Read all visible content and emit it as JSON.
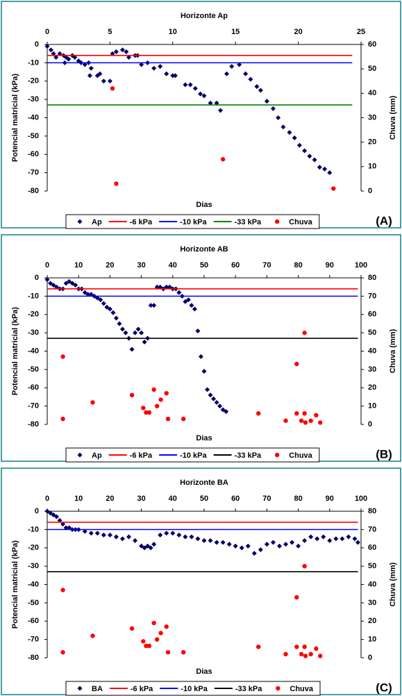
{
  "chart_data": [
    {
      "type": "scatter",
      "title": "Horizonte Ap",
      "panel_label": "(A)",
      "xlabel": "Dias",
      "ylabel": "Potencial matricial (kPa)",
      "y2label": "Chuva (mm)",
      "xlim": [
        0,
        25
      ],
      "xticks": [
        0,
        5,
        10,
        15,
        20,
        25
      ],
      "ylim": [
        -80,
        0
      ],
      "yticks": [
        -80,
        -70,
        -60,
        -50,
        -40,
        -30,
        -20,
        -10,
        0
      ],
      "y2lim": [
        0,
        60
      ],
      "y2ticks": [
        0,
        10,
        20,
        30,
        40,
        50,
        60
      ],
      "grid": false,
      "series": [
        {
          "name": "Ap",
          "color": "#000066",
          "marker": "diamond",
          "x": [
            0,
            0.3,
            0.5,
            0.7,
            1,
            1.3,
            1.4,
            1.5,
            1.7,
            2,
            2.2,
            2.5,
            2.7,
            3,
            3.3,
            3.5,
            3.4,
            4,
            4.2,
            4.5,
            5,
            5.2,
            5.5,
            6,
            6.3,
            6.5,
            7,
            7.2,
            7.5,
            8,
            8.5,
            9,
            9.5,
            10,
            10.2,
            11,
            11.4,
            11.8,
            12.2,
            12.5,
            13,
            13.5,
            13.8,
            14.3,
            14.7,
            15.3,
            15.8,
            16.2,
            16.7,
            17,
            17.5,
            18,
            18.4,
            18.8,
            19.3,
            19.7,
            20.1,
            20.5,
            20.9,
            21.3,
            21.7,
            22.1,
            22.5
          ],
          "values": [
            -1,
            -3,
            -5,
            -7,
            -5,
            -6,
            -10,
            -7,
            -8,
            -6,
            -7,
            -9,
            -10,
            -11,
            -10,
            -13,
            -17,
            -17,
            -16,
            -20,
            -20,
            -5,
            -4,
            -3,
            -4,
            -7,
            -6,
            -6,
            -11,
            -10,
            -13,
            -12,
            -16,
            -17,
            -17,
            -22,
            -22,
            -24,
            -27,
            -28,
            -32,
            -32,
            -36,
            -16,
            -12,
            -11,
            -16,
            -19,
            -23,
            -25,
            -31,
            -35,
            -40,
            -45,
            -48,
            -51,
            -55,
            -58,
            -61,
            -63,
            -67,
            -68,
            -70
          ]
        },
        {
          "name": "-6 kPa",
          "color": "#ff0000",
          "marker": "line",
          "x": [
            0,
            24.3
          ],
          "values": [
            -6,
            -6
          ]
        },
        {
          "name": "-10 kPa",
          "color": "#0000ff",
          "marker": "line",
          "x": [
            0,
            24.3
          ],
          "values": [
            -10,
            -10
          ]
        },
        {
          "name": "-33 kPa",
          "color": "#008000",
          "marker": "line",
          "x": [
            0,
            24.3
          ],
          "values": [
            -33,
            -33
          ]
        },
        {
          "name": "Chuva",
          "color": "#ff0000",
          "marker": "circle",
          "axis": "y2",
          "x": [
            5.2,
            5.5,
            14,
            22.8
          ],
          "values": [
            42,
            3,
            13,
            1
          ]
        }
      ]
    },
    {
      "type": "scatter",
      "title": "Horizonte AB",
      "panel_label": "(B)",
      "xlabel": "Dias",
      "ylabel": "Potencial matricial (kPa)",
      "y2label": "Chuva (mm)",
      "xlim": [
        0,
        100
      ],
      "xticks": [
        0,
        10,
        20,
        30,
        40,
        50,
        60,
        70,
        80,
        90,
        100
      ],
      "ylim": [
        -80,
        0
      ],
      "yticks": [
        -80,
        -70,
        -60,
        -50,
        -40,
        -30,
        -20,
        -10,
        0
      ],
      "y2lim": [
        0,
        80
      ],
      "y2ticks": [
        0,
        10,
        20,
        30,
        40,
        50,
        60,
        70,
        80
      ],
      "grid": false,
      "series": [
        {
          "name": "Ap",
          "color": "#000066",
          "marker": "diamond",
          "x": [
            0,
            1,
            2,
            3,
            4,
            5,
            6,
            7,
            8,
            9,
            10,
            11,
            12,
            13,
            14,
            15,
            16,
            17,
            18,
            19,
            20,
            21,
            22,
            23,
            24,
            25,
            26,
            27,
            28,
            29,
            30,
            31,
            32,
            33,
            34,
            35,
            36,
            37,
            38,
            39,
            40,
            41,
            42,
            43,
            44,
            45,
            46,
            47,
            48,
            49,
            50,
            51,
            52,
            53,
            54,
            55,
            56,
            57
          ],
          "values": [
            -1,
            -3,
            -4,
            -5,
            -6,
            -6,
            -3,
            -2,
            -3,
            -4,
            -6,
            -6,
            -8,
            -9,
            -9,
            -10,
            -11,
            -12,
            -14,
            -16,
            -17,
            -19,
            -22,
            -25,
            -28,
            -30,
            -33,
            -39,
            -30,
            -28,
            -30,
            -35,
            -33,
            -15,
            -15,
            -5,
            -5,
            -6,
            -5,
            -5,
            -6,
            -6,
            -8,
            -10,
            -13,
            -12,
            -15,
            -17,
            -29,
            -43,
            -51,
            -61,
            -64,
            -66,
            -68,
            -70,
            -72,
            -73
          ]
        },
        {
          "name": "-6 kPa",
          "color": "#ff0000",
          "marker": "line",
          "x": [
            0,
            99
          ],
          "values": [
            -6,
            -6
          ]
        },
        {
          "name": "-10 kPa",
          "color": "#0000ff",
          "marker": "line",
          "x": [
            0,
            99
          ],
          "values": [
            -10,
            -10
          ]
        },
        {
          "name": "-33 kPa",
          "color": "#000000",
          "marker": "line",
          "x": [
            0,
            99
          ],
          "values": [
            -33,
            -33
          ]
        },
        {
          "name": "Chuva",
          "color": "#ff0000",
          "marker": "circle",
          "axis": "y2",
          "x": [
            5,
            5,
            14.5,
            27,
            30.6,
            31.5,
            32.5,
            34,
            35,
            36.2,
            38,
            38.5,
            43.4,
            67.3,
            76,
            79.5,
            79.5,
            81,
            82,
            82.3,
            82,
            84,
            85.7,
            87
          ],
          "values": [
            37,
            3,
            12,
            16,
            9,
            6.5,
            6.5,
            19,
            10,
            13.5,
            17,
            3,
            3,
            6,
            2,
            33,
            6,
            2,
            6,
            1,
            50,
            2,
            5,
            1
          ]
        }
      ]
    },
    {
      "type": "scatter",
      "title": "Horizonte BA",
      "panel_label": "(C)",
      "xlabel": "Dias",
      "ylabel": "Potencial matricial (kPa)",
      "y2label": "Chuva (mm)",
      "xlim": [
        0,
        100
      ],
      "xticks": [
        0,
        10,
        20,
        30,
        40,
        50,
        60,
        70,
        80,
        90,
        100
      ],
      "ylim": [
        -80,
        0
      ],
      "yticks": [
        -80,
        -70,
        -60,
        -50,
        -40,
        -30,
        -20,
        -10,
        0
      ],
      "y2lim": [
        0,
        80
      ],
      "y2ticks": [
        0,
        10,
        20,
        30,
        40,
        50,
        60,
        70,
        80
      ],
      "grid": false,
      "series": [
        {
          "name": "BA",
          "color": "#000066",
          "marker": "diamond",
          "x": [
            0,
            1,
            2,
            3,
            4,
            5,
            6,
            7,
            8,
            9,
            10,
            12,
            14,
            16,
            18,
            20,
            22,
            24,
            26,
            28,
            30,
            31,
            32,
            33,
            34,
            36,
            38,
            40,
            42,
            44,
            46,
            48,
            50,
            52,
            54,
            56,
            58,
            60,
            62,
            64,
            66,
            68,
            70,
            72,
            74,
            76,
            78,
            80,
            82,
            84,
            86,
            88,
            90,
            92,
            94,
            96,
            98,
            99
          ],
          "values": [
            0,
            -1,
            -2,
            -3,
            -5,
            -7,
            -9,
            -9,
            -10,
            -10,
            -10,
            -11,
            -12,
            -12,
            -13,
            -13,
            -14,
            -15,
            -14,
            -16,
            -19,
            -20,
            -19,
            -20,
            -18,
            -13,
            -12,
            -12,
            -13,
            -14,
            -14,
            -15,
            -16,
            -16,
            -17,
            -17,
            -18,
            -19,
            -20,
            -19,
            -23,
            -21,
            -18,
            -17,
            -19,
            -18,
            -17,
            -19,
            -16,
            -14,
            -15,
            -14,
            -16,
            -15,
            -15,
            -14,
            -15,
            -17
          ]
        },
        {
          "name": "-6 kPa",
          "color": "#ff0000",
          "marker": "line",
          "x": [
            0,
            99
          ],
          "values": [
            -6,
            -6
          ]
        },
        {
          "name": "-10 kPa",
          "color": "#0000ff",
          "marker": "line",
          "x": [
            0,
            99
          ],
          "values": [
            -10,
            -10
          ]
        },
        {
          "name": "-33 kPa",
          "color": "#000000",
          "marker": "line",
          "x": [
            0,
            99
          ],
          "values": [
            -33,
            -33
          ]
        },
        {
          "name": "Chuva",
          "color": "#ff0000",
          "marker": "circle",
          "axis": "y2",
          "x": [
            5,
            5,
            14.5,
            27,
            30.6,
            31.5,
            32.5,
            34,
            35,
            36.2,
            38,
            38.5,
            43.4,
            67.3,
            76,
            79.5,
            79.5,
            81,
            82,
            82.3,
            82,
            84,
            85.7,
            87
          ],
          "values": [
            37,
            3,
            12,
            16,
            9,
            6.5,
            6.5,
            19,
            10,
            13.5,
            17,
            3,
            3,
            6,
            2,
            33,
            6,
            2,
            6,
            1,
            50,
            2,
            5,
            1
          ]
        }
      ]
    }
  ]
}
